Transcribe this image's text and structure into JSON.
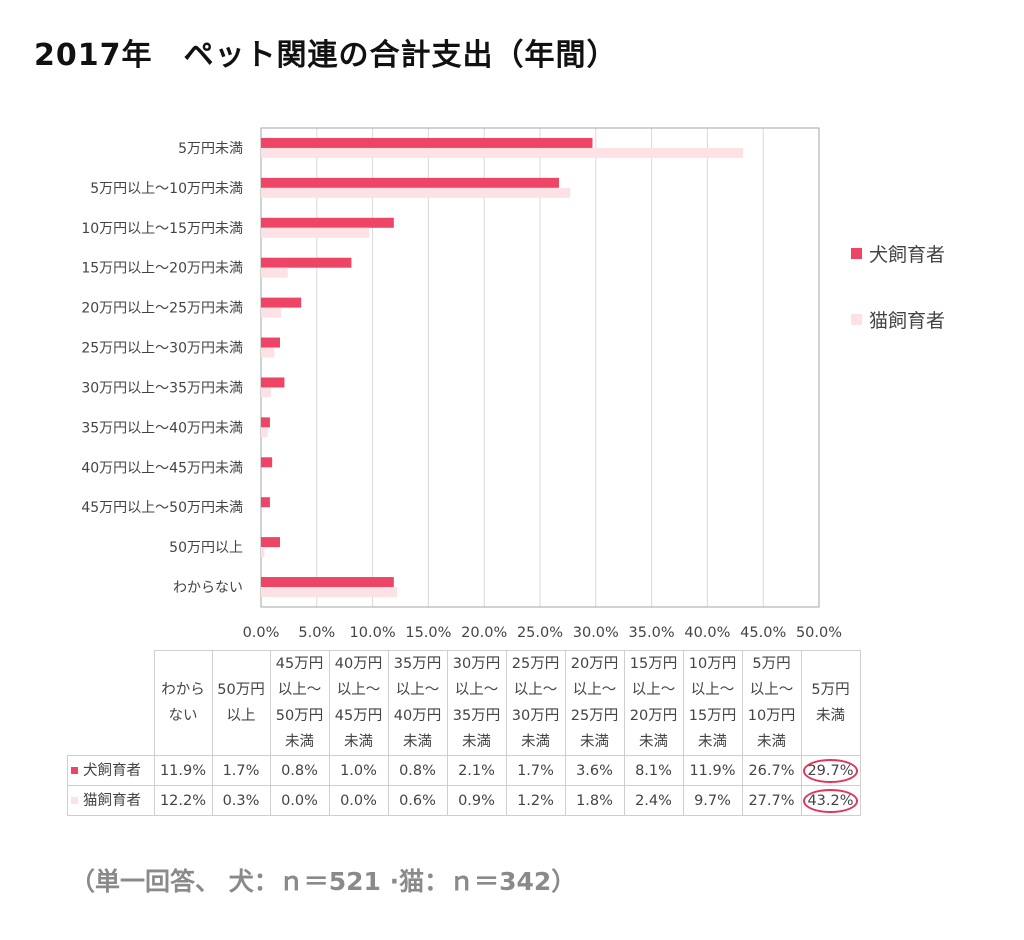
{
  "title": "2017年　ペット関連の合計支出（年間）",
  "footnote": "（単一回答、 犬：ｎ＝521 ·猫：ｎ＝342）",
  "colors": {
    "dog": "#ee4465",
    "cat": "#fde2e5",
    "gridline": "#d9d9d9",
    "circle": "#e0365a"
  },
  "chart_data": {
    "type": "bar",
    "orientation": "horizontal",
    "title": "2017年　ペット関連の合計支出（年間）",
    "categories": [
      "5万円未満",
      "5万円以上～10万円未満",
      "10万円以上～15万円未満",
      "15万円以上～20万円未満",
      "20万円以上～25万円未満",
      "25万円以上～30万円未満",
      "30万円以上～35万円未満",
      "35万円以上～40万円未満",
      "40万円以上～45万円未満",
      "45万円以上～50万円未満",
      "50万円以上",
      "わからない"
    ],
    "series": [
      {
        "name": "犬飼育者",
        "values": [
          29.7,
          26.7,
          11.9,
          8.1,
          3.6,
          1.7,
          2.1,
          0.8,
          1.0,
          0.8,
          1.7,
          11.9
        ]
      },
      {
        "name": "猫飼育者",
        "values": [
          43.2,
          27.7,
          9.7,
          2.4,
          1.8,
          1.2,
          0.9,
          0.6,
          0.0,
          0.0,
          0.3,
          12.2
        ]
      }
    ],
    "xlim": [
      0,
      50
    ],
    "xticks": [
      0,
      5,
      10,
      15,
      20,
      25,
      30,
      35,
      40,
      45,
      50
    ],
    "xtick_labels": [
      "0.0%",
      "5.0%",
      "10.0%",
      "15.0%",
      "20.0%",
      "25.0%",
      "30.0%",
      "35.0%",
      "40.0%",
      "45.0%",
      "50.0%"
    ],
    "legend_position": "right",
    "grid": "vertical"
  },
  "table": {
    "headers": [
      "わからない",
      "50万円以上",
      "45万円以上～50万円未満",
      "40万円以上～45万円未満",
      "35万円以上～40万円未満",
      "30万円以上～35万円未満",
      "25万円以上～30万円未満",
      "20万円以上～25万円未満",
      "15万円以上～20万円未満",
      "10万円以上～15万円未満",
      "5万円以上～10万円未満",
      "5万円未満"
    ],
    "rows": [
      {
        "label": "犬飼育者",
        "values": [
          "11.9%",
          "1.7%",
          "0.8%",
          "1.0%",
          "0.8%",
          "2.1%",
          "1.7%",
          "3.6%",
          "8.1%",
          "11.9%",
          "26.7%",
          "29.7%"
        ]
      },
      {
        "label": "猫飼育者",
        "values": [
          "12.2%",
          "0.3%",
          "0.0%",
          "0.0%",
          "0.6%",
          "0.9%",
          "1.2%",
          "1.8%",
          "2.4%",
          "9.7%",
          "27.7%",
          "43.2%"
        ]
      }
    ],
    "highlighted_column": "5万円未満"
  }
}
